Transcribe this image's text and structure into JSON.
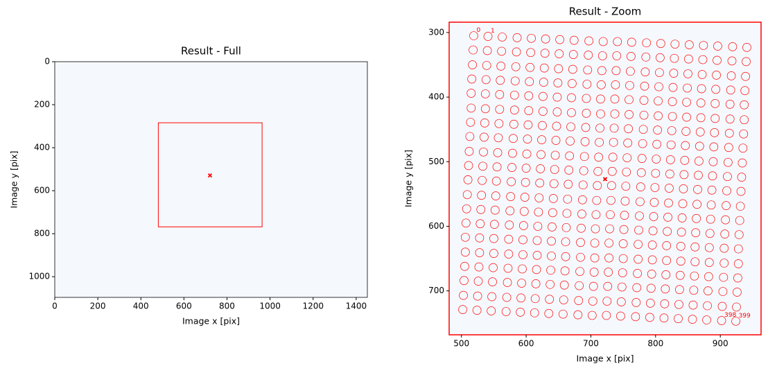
{
  "chart_data": [
    {
      "type": "image",
      "title": "Result - Full",
      "x_label": "Image x [pix]",
      "y_label": "Image y [pix]",
      "xlim": [
        0,
        1452
      ],
      "ylim": [
        1096,
        0
      ],
      "xticks": [
        0,
        200,
        400,
        600,
        800,
        1000,
        1200,
        1400
      ],
      "yticks": [
        0,
        200,
        400,
        600,
        800,
        1000
      ],
      "image_color": "#f5f9fe",
      "color": "#ff0000",
      "zoom_box": {
        "x": [
          481,
          963
        ],
        "y": [
          284,
          768
        ]
      },
      "marker": {
        "x": 721,
        "y": 529
      }
    },
    {
      "type": "image",
      "title": "Result - Zoom",
      "x_label": "Image x [pix]",
      "y_label": "Image y [pix]",
      "xlim": [
        481,
        963
      ],
      "ylim": [
        768,
        284
      ],
      "xticks": [
        500,
        600,
        700,
        800,
        900
      ],
      "yticks": [
        300,
        400,
        500,
        600,
        700
      ],
      "image_color": "#f5f9fe",
      "color": "#ff0000",
      "frame_color": "#ff0000",
      "marker": {
        "x": 722,
        "y": 527
      },
      "annotations": [
        {
          "text": "0",
          "x": 519,
          "y": 305
        },
        {
          "text": "1",
          "x": 541,
          "y": 306
        },
        {
          "text": "398",
          "x": 902,
          "y": 746
        },
        {
          "text": "399",
          "x": 924,
          "y": 747
        }
      ],
      "points": {
        "x": [
          519,
          541,
          563,
          586,
          608,
          630,
          652,
          674,
          697,
          719,
          741,
          763,
          786,
          808,
          830,
          852,
          874,
          896,
          919,
          941,
          518,
          540,
          562,
          585,
          607,
          629,
          651,
          673,
          696,
          718,
          740,
          762,
          785,
          807,
          829,
          851,
          873,
          895,
          918,
          940,
          517,
          539,
          561,
          584,
          606,
          628,
          650,
          672,
          695,
          717,
          739,
          761,
          784,
          806,
          828,
          850,
          872,
          894,
          917,
          939,
          516,
          538,
          560,
          583,
          605,
          627,
          649,
          671,
          694,
          716,
          738,
          760,
          783,
          805,
          827,
          849,
          871,
          893,
          916,
          938,
          515,
          537,
          559,
          582,
          604,
          626,
          648,
          670,
          693,
          715,
          737,
          759,
          782,
          804,
          826,
          848,
          870,
          892,
          915,
          937,
          515,
          537,
          559,
          582,
          604,
          626,
          648,
          670,
          693,
          715,
          737,
          759,
          782,
          804,
          826,
          848,
          870,
          892,
          915,
          937,
          514,
          536,
          558,
          581,
          603,
          625,
          647,
          669,
          692,
          714,
          736,
          758,
          781,
          803,
          825,
          847,
          869,
          891,
          914,
          936,
          513,
          535,
          557,
          580,
          602,
          624,
          646,
          668,
          691,
          713,
          735,
          757,
          780,
          802,
          824,
          846,
          868,
          890,
          913,
          935,
          512,
          534,
          556,
          579,
          601,
          623,
          645,
          667,
          690,
          712,
          734,
          756,
          779,
          801,
          823,
          845,
          867,
          889,
          912,
          934,
          511,
          533,
          555,
          578,
          600,
          622,
          644,
          666,
          689,
          711,
          733,
          755,
          778,
          800,
          822,
          844,
          866,
          888,
          911,
          933,
          510,
          532,
          554,
          577,
          599,
          621,
          643,
          665,
          688,
          710,
          732,
          754,
          777,
          799,
          821,
          843,
          865,
          887,
          910,
          932,
          509,
          531,
          553,
          576,
          598,
          620,
          642,
          664,
          687,
          709,
          731,
          753,
          776,
          798,
          820,
          842,
          864,
          886,
          909,
          931,
          508,
          530,
          552,
          575,
          597,
          619,
          641,
          663,
          686,
          708,
          730,
          752,
          775,
          797,
          819,
          841,
          863,
          885,
          908,
          930,
          507,
          529,
          551,
          574,
          596,
          618,
          640,
          662,
          685,
          707,
          729,
          751,
          774,
          796,
          818,
          840,
          862,
          884,
          907,
          929,
          506,
          528,
          550,
          573,
          595,
          617,
          639,
          661,
          684,
          706,
          728,
          750,
          773,
          795,
          817,
          839,
          861,
          883,
          906,
          928,
          506,
          528,
          550,
          573,
          595,
          617,
          639,
          661,
          684,
          706,
          728,
          750,
          773,
          795,
          817,
          839,
          861,
          883,
          906,
          928,
          505,
          527,
          549,
          572,
          594,
          616,
          638,
          660,
          683,
          705,
          727,
          749,
          772,
          794,
          816,
          838,
          860,
          882,
          905,
          927,
          504,
          526,
          548,
          571,
          593,
          615,
          637,
          659,
          682,
          704,
          726,
          748,
          771,
          793,
          815,
          837,
          859,
          881,
          904,
          926,
          503,
          525,
          547,
          570,
          592,
          614,
          636,
          658,
          681,
          703,
          725,
          747,
          770,
          792,
          814,
          836,
          858,
          880,
          903,
          925,
          502,
          524,
          546,
          569,
          591,
          613,
          635,
          657,
          680,
          702,
          724,
          746,
          769,
          791,
          813,
          835,
          857,
          879,
          902,
          924
        ],
        "y": [
          305,
          306,
          307,
          308,
          309,
          310,
          311,
          312,
          313,
          314,
          314,
          315,
          316,
          317,
          318,
          319,
          320,
          321,
          322,
          323,
          327,
          328,
          329,
          330,
          331,
          332,
          333,
          334,
          335,
          336,
          336,
          337,
          338,
          339,
          340,
          341,
          342,
          343,
          344,
          345,
          350,
          351,
          352,
          353,
          354,
          355,
          356,
          357,
          358,
          359,
          359,
          360,
          361,
          362,
          363,
          364,
          365,
          366,
          367,
          368,
          372,
          373,
          374,
          375,
          376,
          377,
          378,
          379,
          380,
          381,
          381,
          382,
          383,
          384,
          385,
          386,
          387,
          388,
          389,
          390,
          394,
          395,
          396,
          397,
          398,
          399,
          400,
          401,
          402,
          403,
          403,
          404,
          405,
          406,
          407,
          408,
          409,
          410,
          411,
          412,
          417,
          418,
          419,
          420,
          421,
          422,
          423,
          424,
          425,
          426,
          426,
          427,
          428,
          429,
          430,
          431,
          432,
          433,
          434,
          435,
          439,
          440,
          441,
          442,
          443,
          444,
          445,
          446,
          447,
          448,
          448,
          449,
          450,
          451,
          452,
          453,
          454,
          455,
          456,
          457,
          461,
          462,
          463,
          464,
          465,
          466,
          467,
          468,
          469,
          470,
          470,
          471,
          472,
          473,
          474,
          475,
          476,
          477,
          478,
          479,
          484,
          485,
          486,
          487,
          488,
          489,
          490,
          491,
          492,
          493,
          493,
          494,
          495,
          496,
          497,
          498,
          499,
          500,
          501,
          502,
          506,
          507,
          508,
          509,
          510,
          511,
          512,
          513,
          514,
          515,
          515,
          516,
          517,
          518,
          519,
          520,
          521,
          522,
          523,
          524,
          528,
          529,
          530,
          531,
          532,
          533,
          534,
          535,
          536,
          537,
          537,
          538,
          539,
          540,
          541,
          542,
          543,
          544,
          545,
          546,
          551,
          552,
          553,
          554,
          555,
          556,
          557,
          558,
          559,
          560,
          560,
          561,
          562,
          563,
          564,
          565,
          566,
          567,
          568,
          569,
          573,
          574,
          575,
          576,
          577,
          578,
          579,
          580,
          581,
          582,
          582,
          583,
          584,
          585,
          586,
          587,
          588,
          589,
          590,
          591,
          595,
          596,
          597,
          598,
          599,
          600,
          601,
          602,
          603,
          604,
          604,
          605,
          606,
          607,
          608,
          609,
          610,
          611,
          612,
          613,
          617,
          618,
          619,
          620,
          621,
          622,
          623,
          624,
          625,
          626,
          626,
          627,
          628,
          629,
          630,
          631,
          632,
          633,
          634,
          635,
          640,
          641,
          642,
          643,
          644,
          645,
          646,
          647,
          648,
          649,
          649,
          650,
          651,
          652,
          653,
          654,
          655,
          656,
          657,
          658,
          662,
          663,
          664,
          665,
          666,
          667,
          668,
          669,
          670,
          671,
          671,
          672,
          673,
          674,
          675,
          676,
          677,
          678,
          679,
          680,
          684,
          685,
          686,
          687,
          688,
          689,
          690,
          691,
          692,
          693,
          693,
          694,
          695,
          696,
          697,
          698,
          699,
          700,
          701,
          702,
          707,
          708,
          709,
          710,
          711,
          712,
          713,
          714,
          715,
          716,
          716,
          717,
          718,
          719,
          720,
          721,
          722,
          723,
          724,
          725,
          729,
          730,
          731,
          732,
          733,
          734,
          735,
          736,
          737,
          738,
          738,
          739,
          740,
          741,
          742,
          743,
          744,
          745,
          746,
          747
        ]
      }
    }
  ]
}
